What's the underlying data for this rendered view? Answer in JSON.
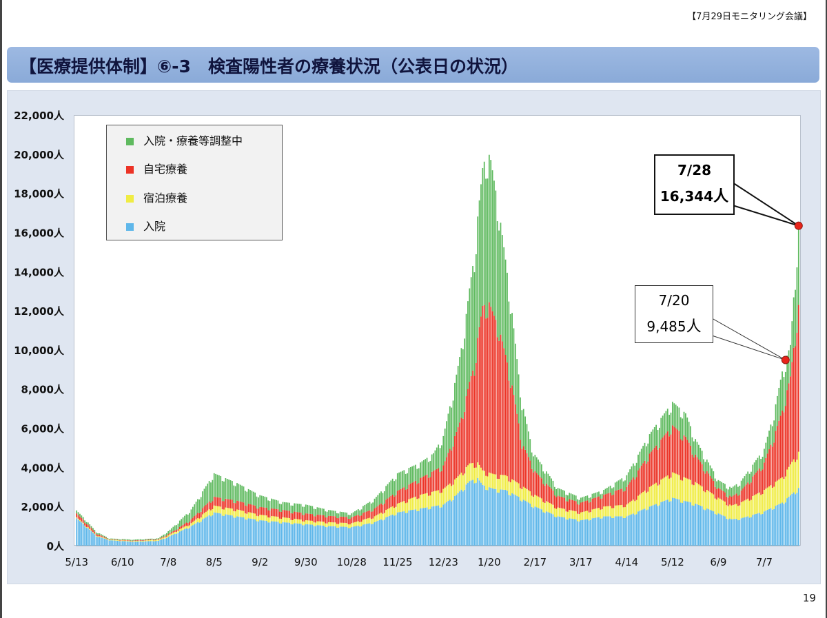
{
  "header": {
    "meeting": "【7月29日モニタリング会議】"
  },
  "title": "【医療提供体制】⑥-3　検査陽性者の療養状況（公表日の状況）",
  "page_number": "19",
  "colors": {
    "hospital": "#5fb7ea",
    "hotel": "#f0ec44",
    "home": "#ec3326",
    "adjusting": "#5fba5f",
    "marker": "#e8241b",
    "title_bar": "#8aaad8",
    "panel": "#dfe6f1"
  },
  "legend": [
    {
      "label": "入院・療養等調整中",
      "color": "#5fba5f"
    },
    {
      "label": "自宅療養",
      "color": "#ec3326"
    },
    {
      "label": "宿泊療養",
      "color": "#f0ec44"
    },
    {
      "label": "入院",
      "color": "#5fb7ea"
    }
  ],
  "callouts": [
    {
      "date": "7/28",
      "value": "16,344",
      "unit": "人"
    },
    {
      "date": "7/20",
      "value": "9,485",
      "unit": "人"
    }
  ],
  "chart_data": {
    "type": "bar",
    "stacked": true,
    "title": "",
    "xlabel": "",
    "ylabel": "",
    "ylim": [
      0,
      22000
    ],
    "y_ticks": [
      "0人",
      "2,000人",
      "4,000人",
      "6,000人",
      "8,000人",
      "10,000人",
      "12,000人",
      "14,000人",
      "16,000人",
      "18,000人",
      "20,000人",
      "22,000人"
    ],
    "x_ticks": [
      "5/13",
      "6/10",
      "7/8",
      "8/5",
      "9/2",
      "9/30",
      "10/28",
      "11/25",
      "12/23",
      "1/20",
      "2/17",
      "3/17",
      "4/14",
      "5/12",
      "6/9",
      "7/7"
    ],
    "x_tick_day_offsets": [
      0,
      28,
      56,
      84,
      112,
      140,
      168,
      196,
      224,
      252,
      280,
      308,
      336,
      364,
      392,
      420
    ],
    "start_date": "5/13",
    "num_days": 442,
    "series_order": [
      "入院",
      "宿泊療養",
      "自宅療養",
      "入院・療養等調整中"
    ],
    "series_keyframes": {
      "入院": [
        [
          0,
          1400
        ],
        [
          5,
          1050
        ],
        [
          12,
          500
        ],
        [
          20,
          280
        ],
        [
          35,
          200
        ],
        [
          50,
          250
        ],
        [
          56,
          450
        ],
        [
          70,
          1000
        ],
        [
          84,
          1700
        ],
        [
          98,
          1500
        ],
        [
          112,
          1300
        ],
        [
          126,
          1200
        ],
        [
          140,
          1100
        ],
        [
          154,
          1000
        ],
        [
          168,
          950
        ],
        [
          182,
          1200
        ],
        [
          196,
          1700
        ],
        [
          210,
          1900
        ],
        [
          224,
          2100
        ],
        [
          232,
          2600
        ],
        [
          240,
          3300
        ],
        [
          245,
          3450
        ],
        [
          248,
          3100
        ],
        [
          255,
          2900
        ],
        [
          262,
          2850
        ],
        [
          270,
          2500
        ],
        [
          280,
          2000
        ],
        [
          294,
          1500
        ],
        [
          308,
          1300
        ],
        [
          322,
          1500
        ],
        [
          336,
          1500
        ],
        [
          350,
          2000
        ],
        [
          364,
          2450
        ],
        [
          378,
          2150
        ],
        [
          392,
          1650
        ],
        [
          400,
          1350
        ],
        [
          406,
          1400
        ],
        [
          420,
          1750
        ],
        [
          431,
          2200
        ],
        [
          441,
          2950
        ]
      ],
      "宿泊療養": [
        [
          0,
          50
        ],
        [
          20,
          30
        ],
        [
          50,
          50
        ],
        [
          70,
          150
        ],
        [
          84,
          350
        ],
        [
          98,
          350
        ],
        [
          112,
          280
        ],
        [
          126,
          250
        ],
        [
          140,
          200
        ],
        [
          168,
          200
        ],
        [
          182,
          300
        ],
        [
          196,
          450
        ],
        [
          210,
          700
        ],
        [
          224,
          800
        ],
        [
          240,
          900
        ],
        [
          248,
          750
        ],
        [
          262,
          750
        ],
        [
          280,
          600
        ],
        [
          294,
          450
        ],
        [
          308,
          400
        ],
        [
          336,
          600
        ],
        [
          350,
          1000
        ],
        [
          364,
          1300
        ],
        [
          378,
          1100
        ],
        [
          392,
          800
        ],
        [
          400,
          700
        ],
        [
          420,
          1100
        ],
        [
          431,
          1300
        ],
        [
          441,
          1850
        ]
      ],
      "自宅療養": [
        [
          0,
          200
        ],
        [
          20,
          20
        ],
        [
          50,
          30
        ],
        [
          60,
          80
        ],
        [
          70,
          200
        ],
        [
          84,
          450
        ],
        [
          98,
          450
        ],
        [
          112,
          400
        ],
        [
          126,
          380
        ],
        [
          140,
          350
        ],
        [
          168,
          300
        ],
        [
          182,
          400
        ],
        [
          196,
          650
        ],
        [
          210,
          850
        ],
        [
          224,
          1200
        ],
        [
          235,
          2800
        ],
        [
          243,
          5000
        ],
        [
          248,
          8400
        ],
        [
          252,
          8700
        ],
        [
          258,
          7500
        ],
        [
          266,
          4800
        ],
        [
          272,
          2200
        ],
        [
          280,
          1200
        ],
        [
          294,
          600
        ],
        [
          308,
          500
        ],
        [
          322,
          600
        ],
        [
          336,
          900
        ],
        [
          350,
          1700
        ],
        [
          364,
          2400
        ],
        [
          372,
          2100
        ],
        [
          378,
          1400
        ],
        [
          392,
          500
        ],
        [
          400,
          450
        ],
        [
          406,
          600
        ],
        [
          420,
          1400
        ],
        [
          426,
          2400
        ],
        [
          431,
          3400
        ],
        [
          436,
          4500
        ],
        [
          441,
          7500
        ]
      ],
      "入院・療養等調整中": [
        [
          0,
          150
        ],
        [
          20,
          40
        ],
        [
          50,
          50
        ],
        [
          56,
          150
        ],
        [
          70,
          500
        ],
        [
          84,
          1200
        ],
        [
          98,
          900
        ],
        [
          112,
          600
        ],
        [
          126,
          400
        ],
        [
          140,
          450
        ],
        [
          154,
          300
        ],
        [
          168,
          200
        ],
        [
          182,
          500
        ],
        [
          196,
          900
        ],
        [
          210,
          800
        ],
        [
          218,
          900
        ],
        [
          224,
          1500
        ],
        [
          230,
          2500
        ],
        [
          238,
          4200
        ],
        [
          245,
          6200
        ],
        [
          250,
          7600
        ],
        [
          253,
          7500
        ],
        [
          258,
          6000
        ],
        [
          264,
          4300
        ],
        [
          270,
          2500
        ],
        [
          278,
          900
        ],
        [
          294,
          400
        ],
        [
          308,
          250
        ],
        [
          322,
          250
        ],
        [
          336,
          600
        ],
        [
          350,
          1000
        ],
        [
          364,
          1200
        ],
        [
          372,
          1200
        ],
        [
          378,
          800
        ],
        [
          392,
          400
        ],
        [
          406,
          500
        ],
        [
          420,
          700
        ],
        [
          426,
          1200
        ],
        [
          431,
          2000
        ],
        [
          436,
          1600
        ],
        [
          441,
          4044
        ]
      ]
    },
    "annotations": [
      {
        "date": "7/28",
        "value": 16344,
        "day_offset": 441
      },
      {
        "date": "7/20",
        "value": 9485,
        "day_offset": 433
      }
    ]
  }
}
